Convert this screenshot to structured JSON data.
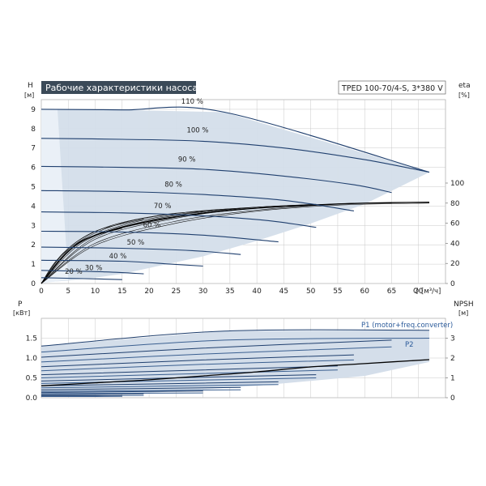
{
  "chart_data": [
    {
      "type": "line",
      "title": "Рабочие характеристики насоса",
      "subtitle": "TPED 100-70/4-S, 3*380 V",
      "ylabel": "H",
      "yunit": "[м]",
      "y2label": "eta",
      "y2unit": "[%]",
      "xlabel": "Q",
      "xunit": "[м³/ч]",
      "xlim": [
        0,
        75
      ],
      "ylim": [
        0,
        9.5
      ],
      "y2lim": [
        0,
        100
      ],
      "xticks": [
        0,
        5,
        10,
        15,
        20,
        25,
        30,
        35,
        40,
        45,
        50,
        55,
        60,
        65,
        70
      ],
      "yticks": [
        0,
        1,
        2,
        3,
        4,
        5,
        6,
        7,
        8,
        9
      ],
      "y2ticks": [
        0,
        20,
        40,
        60,
        80,
        100
      ],
      "grid": true,
      "h_series": [
        {
          "name": "110 %",
          "x": [
            0,
            15,
            34,
            72
          ],
          "y": [
            9.0,
            8.97,
            8.85,
            5.75
          ]
        },
        {
          "name": "100 %",
          "x": [
            0,
            15,
            30,
            45,
            60,
            72
          ],
          "y": [
            7.5,
            7.45,
            7.35,
            7.0,
            6.4,
            5.75
          ]
        },
        {
          "name": "90 %",
          "x": [
            0,
            15,
            30,
            45,
            58,
            65
          ],
          "y": [
            6.05,
            6.0,
            5.9,
            5.55,
            5.1,
            4.7
          ]
        },
        {
          "name": "80 %",
          "x": [
            0,
            15,
            30,
            45,
            58
          ],
          "y": [
            4.8,
            4.75,
            4.6,
            4.3,
            3.75
          ]
        },
        {
          "name": "70 %",
          "x": [
            0,
            15,
            30,
            42,
            51
          ],
          "y": [
            3.7,
            3.65,
            3.5,
            3.25,
            2.9
          ]
        },
        {
          "name": "60 %",
          "x": [
            0,
            15,
            30,
            44
          ],
          "y": [
            2.7,
            2.66,
            2.5,
            2.15
          ]
        },
        {
          "name": "50 %",
          "x": [
            0,
            15,
            28,
            37
          ],
          "y": [
            1.88,
            1.82,
            1.7,
            1.5
          ]
        },
        {
          "name": "40 %",
          "x": [
            0,
            15,
            24,
            30
          ],
          "y": [
            1.2,
            1.15,
            1.0,
            0.9
          ]
        },
        {
          "name": "30 %",
          "x": [
            0,
            12,
            19
          ],
          "y": [
            0.68,
            0.6,
            0.5
          ]
        },
        {
          "name": "20 %",
          "x": [
            0,
            8,
            15
          ],
          "y": [
            0.3,
            0.25,
            0.2
          ]
        }
      ],
      "h_labels": [
        {
          "text": "110 %",
          "x": 28,
          "y": 9.3
        },
        {
          "text": "100 %",
          "x": 29,
          "y": 7.8
        },
        {
          "text": "90 %",
          "x": 27,
          "y": 6.3
        },
        {
          "text": "80 %",
          "x": 24.5,
          "y": 5.0
        },
        {
          "text": "70 %",
          "x": 22.5,
          "y": 3.9
        },
        {
          "text": "60 %",
          "x": 20.5,
          "y": 2.9
        },
        {
          "text": "50 %",
          "x": 17.5,
          "y": 2.0
        },
        {
          "text": "40 %",
          "x": 14.2,
          "y": 1.3
        },
        {
          "text": "30 %",
          "x": 9.7,
          "y": 0.7
        },
        {
          "text": "20 %",
          "x": 6.0,
          "y": 0.5
        }
      ],
      "eta_series": [
        {
          "name": "eta 110 %",
          "x": [
            0,
            10,
            25,
            40,
            55,
            72
          ],
          "y": [
            0,
            38,
            60,
            72,
            78,
            80
          ]
        },
        {
          "name": "eta 100 %",
          "x": [
            0,
            10,
            25,
            40,
            55,
            65
          ],
          "y": [
            0,
            40,
            62,
            73,
            79,
            80
          ]
        },
        {
          "name": "eta 90 %",
          "x": [
            0,
            10,
            25,
            40,
            58
          ],
          "y": [
            0,
            44,
            65,
            75,
            80
          ]
        },
        {
          "name": "eta 80 %",
          "x": [
            0,
            10,
            25,
            40,
            55
          ],
          "y": [
            0,
            46,
            66,
            76,
            79
          ]
        },
        {
          "name": "eta 70 %",
          "x": [
            0,
            8,
            20,
            35,
            51
          ],
          "y": [
            0,
            42,
            63,
            74,
            79
          ]
        },
        {
          "name": "eta 60 %",
          "x": [
            0,
            7,
            18,
            32,
            44
          ],
          "y": [
            0,
            40,
            62,
            73,
            77
          ]
        },
        {
          "name": "eta 50 %",
          "x": [
            0,
            6,
            15,
            27,
            37
          ],
          "y": [
            0,
            38,
            60,
            71,
            75
          ]
        },
        {
          "name": "eta 40 %",
          "x": [
            0,
            5,
            12,
            22,
            30
          ],
          "y": [
            0,
            35,
            56,
            68,
            72
          ]
        },
        {
          "name": "eta 30 %",
          "x": [
            0,
            4,
            10,
            19
          ],
          "y": [
            0,
            30,
            52,
            64
          ]
        },
        {
          "name": "eta 20 %",
          "x": [
            0,
            3,
            8,
            15
          ],
          "y": [
            0,
            24,
            44,
            55
          ]
        }
      ],
      "eta_overall": {
        "x": [
          0,
          5,
          10,
          20,
          30,
          40,
          50,
          60,
          72
        ],
        "y": [
          0,
          32,
          48,
          62,
          70,
          75,
          78,
          80,
          81
        ]
      },
      "envelope": {
        "outer_x": [
          0,
          1,
          3,
          15,
          34,
          72,
          60,
          50,
          40,
          30,
          20,
          15,
          10,
          5,
          0
        ],
        "outer_y": [
          0.1,
          9.0,
          9.0,
          8.97,
          8.85,
          5.75,
          4.1,
          3.1,
          2.2,
          1.4,
          0.8,
          0.5,
          0.3,
          0.15,
          0.05
        ]
      }
    },
    {
      "type": "line",
      "ylabel": "P",
      "yunit": "[кВт]",
      "y2label": "NPSH",
      "y2unit": "[м]",
      "xlim": [
        0,
        75
      ],
      "ylim": [
        0,
        2.0
      ],
      "y2lim": [
        0,
        4.0
      ],
      "yticks": [
        0.0,
        0.5,
        1.0,
        1.5
      ],
      "ytick_labels": [
        "0.0",
        "0.5",
        "1.0",
        "1.5"
      ],
      "y2ticks": [
        0,
        1,
        2,
        3
      ],
      "grid": true,
      "legend": [
        {
          "text": "P1 (motor+freq.converter)"
        },
        {
          "text": "P2"
        }
      ],
      "p_series": [
        {
          "name": "P1 110 %",
          "x": [
            0,
            34,
            72
          ],
          "y": [
            1.3,
            1.68,
            1.7
          ]
        },
        {
          "name": "P2 110 %",
          "x": [
            0,
            34,
            72
          ],
          "y": [
            1.15,
            1.45,
            1.5
          ]
        },
        {
          "name": "P1 100 %",
          "x": [
            0,
            30,
            65
          ],
          "y": [
            1.02,
            1.25,
            1.45
          ]
        },
        {
          "name": "P2 100 %",
          "x": [
            0,
            30,
            65
          ],
          "y": [
            0.9,
            1.1,
            1.28
          ]
        },
        {
          "name": "P1 90 %",
          "x": [
            0,
            30,
            58
          ],
          "y": [
            0.78,
            0.95,
            1.08
          ]
        },
        {
          "name": "P2 90 %",
          "x": [
            0,
            30,
            58
          ],
          "y": [
            0.68,
            0.84,
            0.95
          ]
        },
        {
          "name": "P1 80 %",
          "x": [
            0,
            30,
            55
          ],
          "y": [
            0.58,
            0.7,
            0.8
          ]
        },
        {
          "name": "P2 80 %",
          "x": [
            0,
            30,
            55
          ],
          "y": [
            0.5,
            0.61,
            0.7
          ]
        },
        {
          "name": "P1 70 %",
          "x": [
            0,
            25,
            51
          ],
          "y": [
            0.42,
            0.5,
            0.58
          ]
        },
        {
          "name": "P2 70 %",
          "x": [
            0,
            25,
            51
          ],
          "y": [
            0.36,
            0.43,
            0.5
          ]
        },
        {
          "name": "P1 60 %",
          "x": [
            0,
            22,
            44
          ],
          "y": [
            0.3,
            0.35,
            0.4
          ]
        },
        {
          "name": "P2 60 %",
          "x": [
            0,
            22,
            44
          ],
          "y": [
            0.25,
            0.29,
            0.33
          ]
        },
        {
          "name": "P1 50 %",
          "x": [
            0,
            18,
            37
          ],
          "y": [
            0.2,
            0.23,
            0.26
          ]
        },
        {
          "name": "P2 50 %",
          "x": [
            0,
            18,
            37
          ],
          "y": [
            0.16,
            0.18,
            0.2
          ]
        },
        {
          "name": "P1 40 %",
          "x": [
            0,
            15,
            30
          ],
          "y": [
            0.13,
            0.15,
            0.17
          ]
        },
        {
          "name": "P2 40 %",
          "x": [
            0,
            15,
            30
          ],
          "y": [
            0.1,
            0.11,
            0.12
          ]
        },
        {
          "name": "P1 30 %",
          "x": [
            0,
            10,
            19
          ],
          "y": [
            0.08,
            0.09,
            0.1
          ]
        },
        {
          "name": "P2 30 %",
          "x": [
            0,
            10,
            19
          ],
          "y": [
            0.05,
            0.055,
            0.06
          ]
        },
        {
          "name": "P1 20 %",
          "x": [
            0,
            8,
            15
          ],
          "y": [
            0.05,
            0.05,
            0.055
          ]
        },
        {
          "name": "P2 20 %",
          "x": [
            0,
            8,
            15
          ],
          "y": [
            0.03,
            0.03,
            0.035
          ]
        }
      ],
      "npsh": {
        "x": [
          0,
          10,
          20,
          30,
          40,
          50,
          60,
          72
        ],
        "y": [
          0.6,
          0.75,
          0.9,
          1.1,
          1.3,
          1.55,
          1.72,
          1.92
        ]
      },
      "envelope": {
        "x": [
          0,
          34,
          72,
          72,
          60,
          40,
          20,
          0
        ],
        "y": [
          1.3,
          1.68,
          1.7,
          0.9,
          0.55,
          0.3,
          0.12,
          0.02
        ]
      }
    }
  ]
}
